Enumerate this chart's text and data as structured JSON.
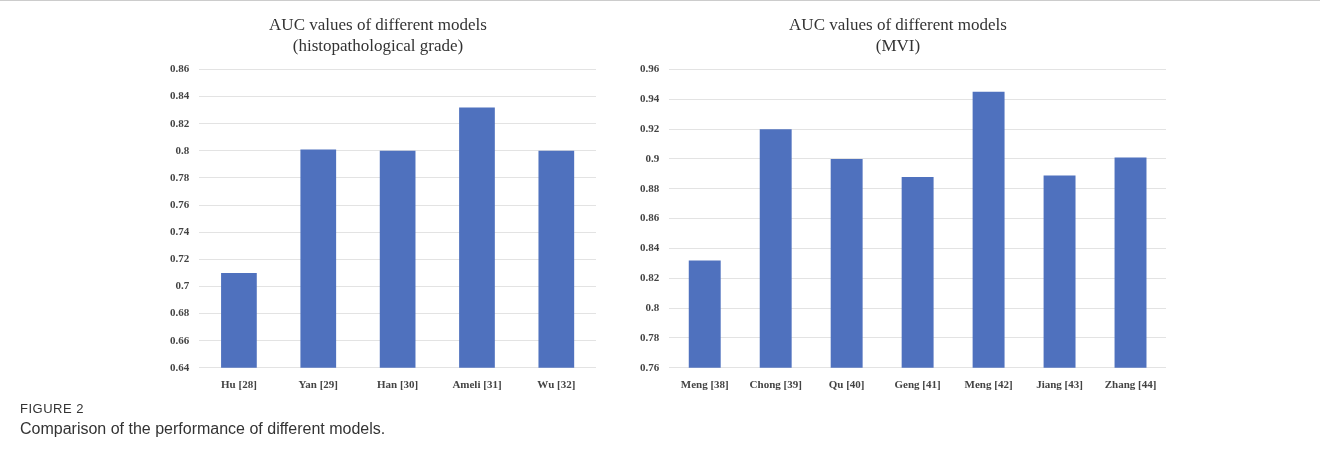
{
  "chart_data": [
    {
      "type": "bar",
      "title": "AUC values of different models\n(histopathological grade)",
      "categories": [
        "Hu [28]",
        "Yan [29]",
        "Han [30]",
        "Ameli [31]",
        "Wu [32]"
      ],
      "values": [
        0.71,
        0.801,
        0.8,
        0.832,
        0.8
      ],
      "color": "#4f71be",
      "ylim": [
        0.64,
        0.86
      ],
      "yticks": [
        0.64,
        0.66,
        0.68,
        0.7,
        0.72,
        0.74,
        0.76,
        0.78,
        0.8,
        0.82,
        0.84,
        0.86
      ],
      "grid": "y",
      "legend": false,
      "annotations": [
        "FIGURE 2",
        "Comparison of the performance of different models."
      ]
    },
    {
      "type": "bar",
      "title": "AUC values of different models\n(MVI)",
      "categories": [
        "Meng [38]",
        "Chong [39]",
        "Qu [40]",
        "Geng [41]",
        "Meng [42]",
        "Jiang [43]",
        "Zhang [44]"
      ],
      "values": [
        0.832,
        0.92,
        0.9,
        0.888,
        0.945,
        0.889,
        0.901
      ],
      "color": "#4f71be",
      "ylim": [
        0.76,
        0.96
      ],
      "yticks": [
        0.76,
        0.78,
        0.8,
        0.82,
        0.84,
        0.86,
        0.88,
        0.9,
        0.92,
        0.94,
        0.96
      ],
      "grid": "y",
      "legend": false
    }
  ]
}
